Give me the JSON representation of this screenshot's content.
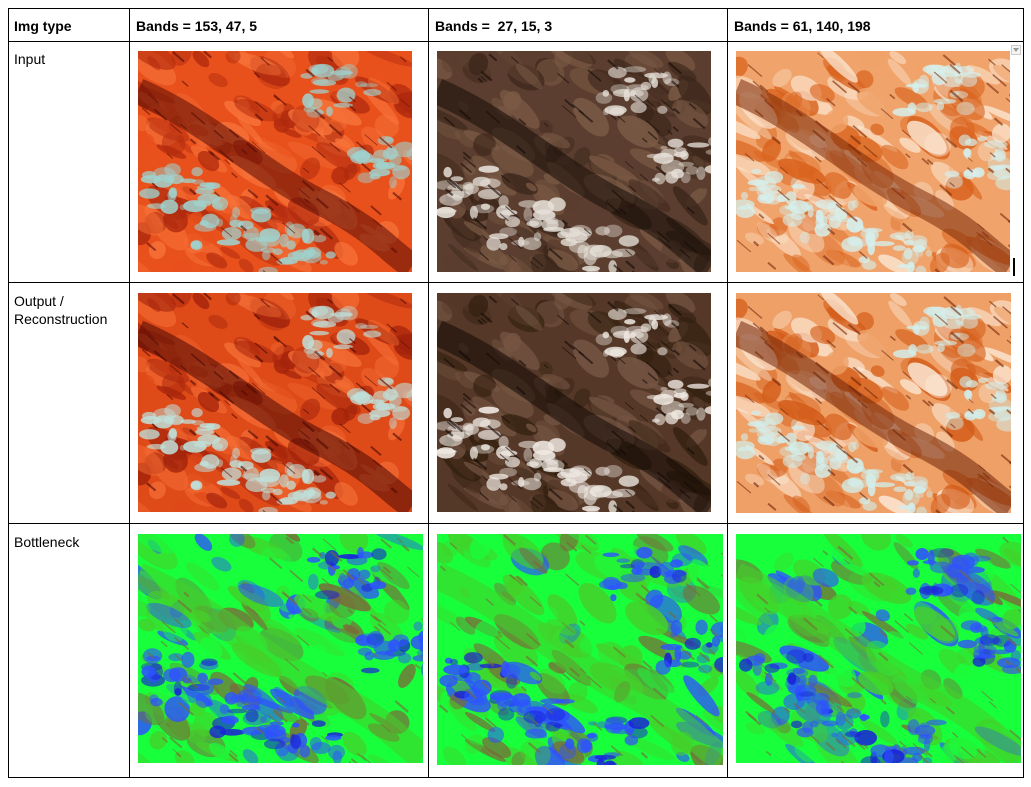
{
  "table": {
    "header": {
      "col0": "Img type",
      "col1": "Bands = 153, 47, 5",
      "col2": "Bands =  27, 15, 3",
      "col3": "Bands = 61, 140, 198"
    },
    "rows": [
      {
        "label": "Input"
      },
      {
        "label": "Output / Reconstruction"
      },
      {
        "label": "Bottleneck"
      }
    ]
  },
  "images": {
    "input_153_47_5": {
      "palette": [
        "#5a0d05",
        "#b02a0e",
        "#e8501c",
        "#f7733a",
        "#9fd3cf"
      ]
    },
    "input_27_15_3": {
      "palette": [
        "#160c08",
        "#3a2519",
        "#5b3e2f",
        "#7a5a45",
        "#e6e0d8"
      ]
    },
    "input_61_140_198": {
      "palette": [
        "#7a2a0a",
        "#d9631e",
        "#f0a36a",
        "#fbe5cf",
        "#d5f0ee"
      ]
    },
    "output_153_47_5": {
      "palette": [
        "#4a0803",
        "#a3230b",
        "#df4a19",
        "#f36c34",
        "#bfe0da"
      ]
    },
    "output_27_15_3": {
      "palette": [
        "#120906",
        "#33200f",
        "#553828",
        "#755543",
        "#efe9e2"
      ]
    },
    "output_61_140_198": {
      "palette": [
        "#70250a",
        "#d45d1a",
        "#eea066",
        "#fbe8d6",
        "#d2eeeb"
      ]
    },
    "bottleneck_153_47_5": {
      "palette": [
        "#2e52ff",
        "#1a1fd8",
        "#7a6a3a",
        "#45d02a",
        "#18ff3c"
      ]
    },
    "bottleneck_27_15_3": {
      "palette": [
        "#2e52ff",
        "#1a1fd8",
        "#7a6a3a",
        "#45d02a",
        "#18ff3c"
      ]
    },
    "bottleneck_61_140_198": {
      "palette": [
        "#2e52ff",
        "#1a1fd8",
        "#7a6a3a",
        "#45d02a",
        "#18ff3c"
      ]
    }
  }
}
